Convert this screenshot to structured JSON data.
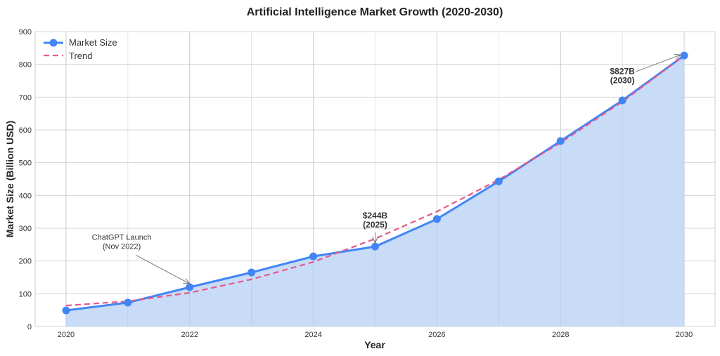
{
  "chart_data": {
    "type": "line",
    "title": "Artificial Intelligence Market Growth (2020-2030)",
    "xlabel": "Year",
    "ylabel": "Market Size (Billion USD)",
    "x": [
      2020,
      2021,
      2022,
      2023,
      2024,
      2025,
      2026,
      2027,
      2028,
      2029,
      2030
    ],
    "xlim": [
      2019.5,
      2030.5
    ],
    "ylim": [
      0,
      900
    ],
    "xticks": [
      "2020",
      "2022",
      "2024",
      "2026",
      "2028",
      "2030"
    ],
    "xtick_values": [
      2020,
      2022,
      2024,
      2026,
      2028,
      2030
    ],
    "yticks": [
      "0",
      "100",
      "200",
      "300",
      "400",
      "500",
      "600",
      "700",
      "800",
      "900"
    ],
    "ytick_values": [
      0,
      100,
      200,
      300,
      400,
      500,
      600,
      700,
      800,
      900
    ],
    "grid": true,
    "legend_position": "top-left",
    "series": [
      {
        "name": "Market Size",
        "style": "solid-markers-area",
        "color": "#4285f4",
        "fill": "#c5d9f7",
        "values": [
          49,
          73,
          120,
          165,
          214,
          244,
          328,
          443,
          566,
          690,
          827
        ]
      },
      {
        "name": "Trend",
        "style": "dashed",
        "color": "#e8578a",
        "values": [
          64,
          77,
          103,
          144,
          197,
          268,
          351,
          448,
          561,
          686,
          827
        ]
      }
    ],
    "annotations": [
      {
        "lines": [
          "ChatGPT Launch",
          "(Nov 2022)"
        ],
        "x": 2022,
        "y": 120,
        "text_x": 2020.9,
        "text_y": 265,
        "bold": false,
        "anchor": "middle"
      },
      {
        "lines": [
          "$244B",
          "(2025)"
        ],
        "x": 2025,
        "y": 244,
        "text_x": 2025,
        "text_y": 330,
        "bold": true,
        "anchor": "middle"
      },
      {
        "lines": [
          "$827B",
          "(2030)"
        ],
        "x": 2030,
        "y": 827,
        "text_x": 2029,
        "text_y": 770,
        "bold": true,
        "anchor": "middle"
      }
    ]
  }
}
